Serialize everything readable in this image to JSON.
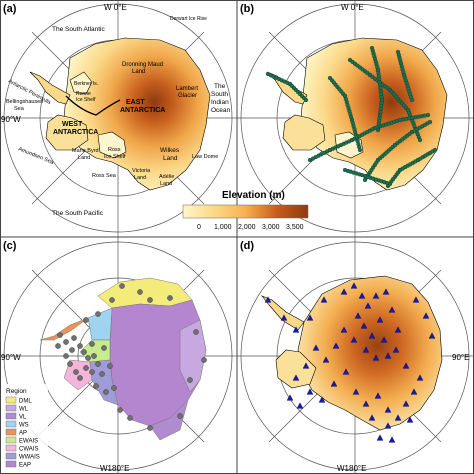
{
  "panels": {
    "a": {
      "label": "(a)",
      "top_axis": "W 0°E",
      "left_axis": "90°W",
      "places": {
        "south_atlantic": "The South Atlantic",
        "derwart": "Derwart Ice Rise",
        "dronning_1": "Dronning Maud",
        "dronning_2": "Land",
        "lambert_1": "Lambert",
        "lambert_2": "Glacier",
        "south_indian_1": "The",
        "south_indian_2": "South",
        "south_indian_3": "Indian",
        "south_indian_4": "Ocean",
        "antarctic_peninsula": "Antarctic Peninsula",
        "bellingshausen_1": "Bellingshausen",
        "bellingshausen_2": "Sea",
        "berkner": "Berkner Is.",
        "ronne_1": "Ronne",
        "ronne_2": "Ice Shelf",
        "east_antarctica_1": "EAST",
        "east_antarctica_2": "ANTARCTICA",
        "west_antarctica_1": "WEST",
        "west_antarctica_2": "ANTARCTICA",
        "wilkes_1": "Wilkes",
        "wilkes_2": "Land",
        "law_dome": "Law Dome",
        "amundsen": "Amundsen Sea",
        "marie_byrd_1": "Marie Byrd",
        "marie_byrd_2": "Land",
        "ross_shelf_1": "Ross",
        "ross_shelf_2": "Ice Shelf",
        "ross_sea": "Ross Sea",
        "victoria_1": "Victoria",
        "victoria_2": "Land",
        "adelie_1": "Adélie",
        "adelie_2": "Land",
        "south_pacific": "The South Pacific"
      }
    },
    "b": {
      "label": "(b)",
      "top_axis": "W 0°E"
    },
    "c": {
      "label": "(c)",
      "left_axis": "90°W",
      "bottom_axis": "W180°E"
    },
    "d": {
      "label": "(d)",
      "right_axis": "90°E",
      "bottom_axis": "W180°E"
    }
  },
  "elevation_legend": {
    "title": "Elevation (m)",
    "ticks": [
      "0",
      "1,000",
      "2,000",
      "3,000",
      "3,500"
    ],
    "colors": [
      "#fdf6c8",
      "#fbd98a",
      "#f6b14e",
      "#e8862e",
      "#c95c1c",
      "#8e3a10"
    ]
  },
  "region_legend": {
    "title": "Region",
    "items": [
      {
        "label": "DML",
        "color": "#f3ec7a"
      },
      {
        "label": "WL",
        "color": "#c7a8e0"
      },
      {
        "label": "VL",
        "color": "#b08bd0"
      },
      {
        "label": "WS",
        "color": "#9fd4f0"
      },
      {
        "label": "AP",
        "color": "#e8955a"
      },
      {
        "label": "EWAIS",
        "color": "#c7ec8e"
      },
      {
        "label": "CWAIS",
        "color": "#f3b5da"
      },
      {
        "label": "WWAIS",
        "color": "#9f9cd8"
      },
      {
        "label": "EAP",
        "color": "#b486cf"
      }
    ]
  },
  "colors": {
    "ice_low": "#fdf3c2",
    "ice_mid": "#f6b45a",
    "ice_high": "#c8601e",
    "ice_peak": "#8e3a10",
    "traverse_points": "#1f6e4e",
    "ice_core_sites": "#1a1aa8",
    "region_sites": "#707070"
  }
}
